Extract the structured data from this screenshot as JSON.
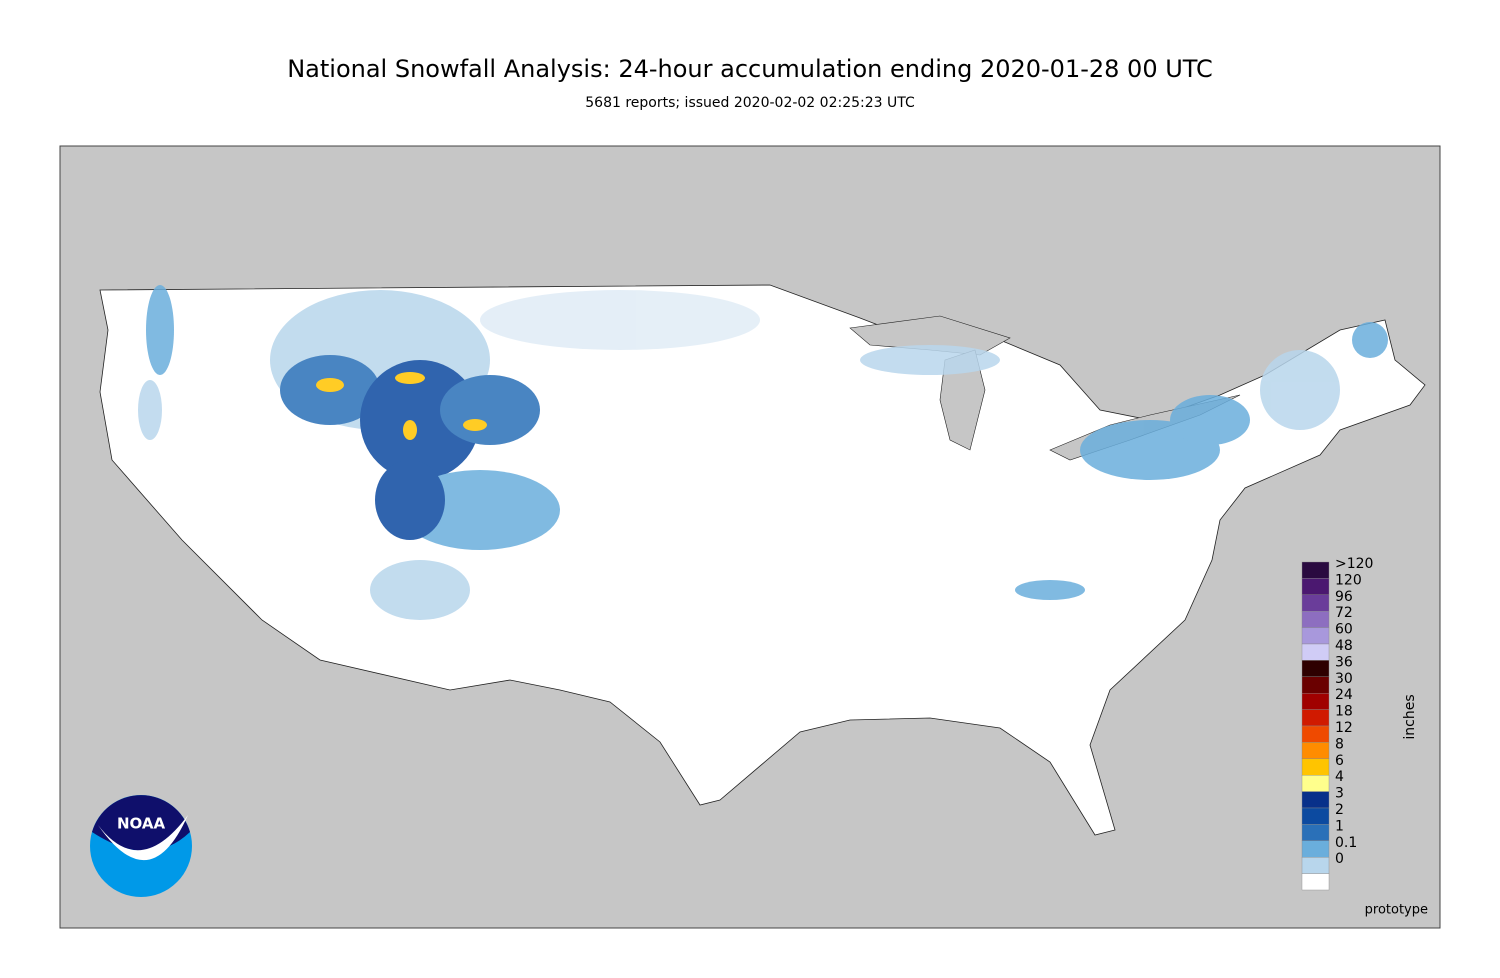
{
  "title": "National Snowfall Analysis: 24-hour accumulation ending 2020-01-28 00 UTC",
  "subtitle": "5681 reports; issued 2020-02-02 02:25:23 UTC",
  "legend": {
    "unit": "inches",
    "items": [
      {
        "label": ">120",
        "color": "#2a0a40"
      },
      {
        "label": "120",
        "color": "#4b1870"
      },
      {
        "label": "96",
        "color": "#6a3d9a"
      },
      {
        "label": "72",
        "color": "#8d6ec0"
      },
      {
        "label": "60",
        "color": "#a898dc"
      },
      {
        "label": "48",
        "color": "#d0ccf6"
      },
      {
        "label": "36",
        "color": "#2e0000"
      },
      {
        "label": "30",
        "color": "#6a0000"
      },
      {
        "label": "24",
        "color": "#a00000"
      },
      {
        "label": "18",
        "color": "#d01a00"
      },
      {
        "label": "12",
        "color": "#ef4a00"
      },
      {
        "label": "8",
        "color": "#ff8c00"
      },
      {
        "label": "6",
        "color": "#ffc400"
      },
      {
        "label": "4",
        "color": "#ffff8c"
      },
      {
        "label": "3",
        "color": "#08308a"
      },
      {
        "label": "2",
        "color": "#0c4aa0"
      },
      {
        "label": "1",
        "color": "#2a70b8"
      },
      {
        "label": "0.1",
        "color": "#6aaedc"
      },
      {
        "label": "0",
        "color": "#b8d6ec"
      }
    ]
  },
  "footer": "prototype",
  "logo": "NOAA"
}
